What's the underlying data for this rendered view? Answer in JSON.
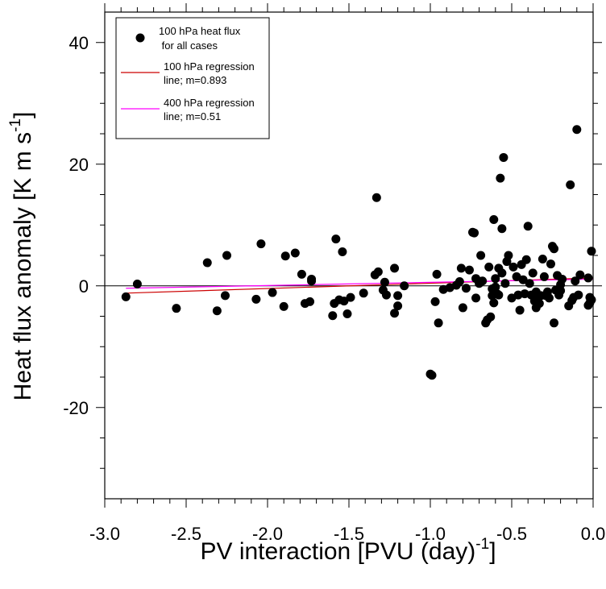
{
  "chart_data": {
    "type": "scatter",
    "xlabel": "PV interaction [PVU (day)",
    "xlabel_sup": "-1",
    "xlabel_end": "]",
    "ylabel": "Heat flux anomaly [K m s",
    "ylabel_sup": "-1",
    "ylabel_end": "]",
    "xlim": [
      -3.0,
      0.0
    ],
    "ylim": [
      -35,
      45
    ],
    "x_major_ticks": [
      -3.0,
      -2.5,
      -2.0,
      -1.5,
      -1.0,
      -0.5,
      0.0
    ],
    "x_tick_labels": [
      "-3.0",
      "-2.5",
      "-2.0",
      "-1.5",
      "-1.0",
      "-0.5",
      "0.0"
    ],
    "x_minor_ticks": [
      -2.9,
      -2.8,
      -2.7,
      -2.6,
      -2.4,
      -2.3,
      -2.2,
      -2.1,
      -1.9,
      -1.8,
      -1.7,
      -1.6,
      -1.4,
      -1.3,
      -1.2,
      -1.1,
      -0.9,
      -0.8,
      -0.7,
      -0.6,
      -0.4,
      -0.3,
      -0.2,
      -0.1
    ],
    "y_major_ticks": [
      -20,
      0,
      20,
      40
    ],
    "y_tick_labels": [
      "-20",
      "0",
      "20",
      "40"
    ],
    "y_minor_ticks": [
      -30,
      -25,
      -15,
      -10,
      -5,
      5,
      10,
      15,
      25,
      30,
      35
    ],
    "zero_line": true,
    "grid": false,
    "legend_position": "top-left",
    "legend": [
      {
        "kind": "marker",
        "line1": "100 hPa heat flux",
        "line2": " for all cases",
        "color": "#000000"
      },
      {
        "kind": "line",
        "line1": "100 hPa regression",
        "line2": "line; m=0.893",
        "color": "#cc0000"
      },
      {
        "kind": "line",
        "line1": "400 hPa regression",
        "line2": "line; m=0.51",
        "color": "#ff00ff"
      }
    ],
    "lines": [
      {
        "color": "#cc0000",
        "x": [
          -2.87,
          0.0
        ],
        "y": [
          -1.2,
          1.3
        ]
      },
      {
        "color": "#ff00ff",
        "x": [
          -2.87,
          0.0
        ],
        "y": [
          -0.4,
          1.1
        ]
      }
    ],
    "points": [
      {
        "x": -2.87,
        "y": -1.8
      },
      {
        "x": -2.8,
        "y": 0.3
      },
      {
        "x": -2.56,
        "y": -3.7
      },
      {
        "x": -2.37,
        "y": 3.8
      },
      {
        "x": -2.31,
        "y": -4.1
      },
      {
        "x": -2.26,
        "y": -1.6
      },
      {
        "x": -2.25,
        "y": 5.0
      },
      {
        "x": -2.07,
        "y": -2.2
      },
      {
        "x": -2.04,
        "y": 6.9
      },
      {
        "x": -1.97,
        "y": -1.1
      },
      {
        "x": -1.9,
        "y": -3.4
      },
      {
        "x": -1.89,
        "y": 4.9
      },
      {
        "x": -1.83,
        "y": 5.4
      },
      {
        "x": -1.79,
        "y": 1.9
      },
      {
        "x": -1.77,
        "y": -2.9
      },
      {
        "x": -1.74,
        "y": -2.6
      },
      {
        "x": -1.73,
        "y": 0.8
      },
      {
        "x": -1.73,
        "y": 1.1
      },
      {
        "x": -1.6,
        "y": -4.9
      },
      {
        "x": -1.59,
        "y": -2.9
      },
      {
        "x": -1.58,
        "y": 7.7
      },
      {
        "x": -1.56,
        "y": -2.3
      },
      {
        "x": -1.54,
        "y": 5.6
      },
      {
        "x": -1.53,
        "y": -2.5
      },
      {
        "x": -1.51,
        "y": -4.6
      },
      {
        "x": -1.49,
        "y": -1.9
      },
      {
        "x": -1.41,
        "y": -1.2
      },
      {
        "x": -1.34,
        "y": 1.8
      },
      {
        "x": -1.33,
        "y": 14.5
      },
      {
        "x": -1.32,
        "y": 2.3
      },
      {
        "x": -1.29,
        "y": -0.7
      },
      {
        "x": -1.28,
        "y": 0.6
      },
      {
        "x": -1.27,
        "y": -1.5
      },
      {
        "x": -1.22,
        "y": 2.9
      },
      {
        "x": -1.22,
        "y": -4.5
      },
      {
        "x": -1.2,
        "y": -3.3
      },
      {
        "x": -1.2,
        "y": -1.6
      },
      {
        "x": -1.16,
        "y": 0.0
      },
      {
        "x": -1.0,
        "y": -14.5
      },
      {
        "x": -0.99,
        "y": -14.7
      },
      {
        "x": -0.97,
        "y": -2.6
      },
      {
        "x": -0.96,
        "y": 1.9
      },
      {
        "x": -0.95,
        "y": -6.1
      },
      {
        "x": -0.92,
        "y": -0.6
      },
      {
        "x": -0.88,
        "y": -0.3
      },
      {
        "x": -0.84,
        "y": 0.1
      },
      {
        "x": -0.82,
        "y": 0.7
      },
      {
        "x": -0.81,
        "y": 2.9
      },
      {
        "x": -0.8,
        "y": -3.6
      },
      {
        "x": -0.78,
        "y": -0.4
      },
      {
        "x": -0.76,
        "y": 2.6
      },
      {
        "x": -0.74,
        "y": 8.8
      },
      {
        "x": -0.73,
        "y": 8.7
      },
      {
        "x": -0.72,
        "y": 1.2
      },
      {
        "x": -0.72,
        "y": -2.0
      },
      {
        "x": -0.7,
        "y": 0.4
      },
      {
        "x": -0.69,
        "y": 5.0
      },
      {
        "x": -0.68,
        "y": 0.8
      },
      {
        "x": -0.66,
        "y": -6.1
      },
      {
        "x": -0.65,
        "y": -5.6
      },
      {
        "x": -0.64,
        "y": 3.1
      },
      {
        "x": -0.63,
        "y": -5.1
      },
      {
        "x": -0.62,
        "y": -1.6
      },
      {
        "x": -0.62,
        "y": -0.5
      },
      {
        "x": -0.61,
        "y": 10.9
      },
      {
        "x": -0.61,
        "y": -2.8
      },
      {
        "x": -0.6,
        "y": 1.2
      },
      {
        "x": -0.6,
        "y": -0.2
      },
      {
        "x": -0.59,
        "y": -1.3
      },
      {
        "x": -0.58,
        "y": -1.5
      },
      {
        "x": -0.58,
        "y": 2.9
      },
      {
        "x": -0.57,
        "y": 17.7
      },
      {
        "x": -0.56,
        "y": 2.1
      },
      {
        "x": -0.56,
        "y": 9.4
      },
      {
        "x": -0.55,
        "y": 21.1
      },
      {
        "x": -0.54,
        "y": 0.4
      },
      {
        "x": -0.53,
        "y": 4.0
      },
      {
        "x": -0.52,
        "y": 5.0
      },
      {
        "x": -0.5,
        "y": -2.0
      },
      {
        "x": -0.49,
        "y": 3.1
      },
      {
        "x": -0.47,
        "y": 1.5
      },
      {
        "x": -0.46,
        "y": -1.5
      },
      {
        "x": -0.45,
        "y": -4.0
      },
      {
        "x": -0.44,
        "y": 3.5
      },
      {
        "x": -0.43,
        "y": 1.0
      },
      {
        "x": -0.42,
        "y": -1.3
      },
      {
        "x": -0.41,
        "y": 4.3
      },
      {
        "x": -0.4,
        "y": 9.8
      },
      {
        "x": -0.39,
        "y": 0.4
      },
      {
        "x": -0.38,
        "y": -1.5
      },
      {
        "x": -0.37,
        "y": 2.1
      },
      {
        "x": -0.36,
        "y": -2.5
      },
      {
        "x": -0.35,
        "y": -1.0
      },
      {
        "x": -0.35,
        "y": -3.6
      },
      {
        "x": -0.34,
        "y": -1.8
      },
      {
        "x": -0.33,
        "y": -2.9
      },
      {
        "x": -0.32,
        "y": -1.6
      },
      {
        "x": -0.31,
        "y": 4.4
      },
      {
        "x": -0.3,
        "y": 1.5
      },
      {
        "x": -0.29,
        "y": -1.6
      },
      {
        "x": -0.28,
        "y": -1.0
      },
      {
        "x": -0.27,
        "y": -2.0
      },
      {
        "x": -0.26,
        "y": 3.6
      },
      {
        "x": -0.25,
        "y": 6.5
      },
      {
        "x": -0.24,
        "y": -6.1
      },
      {
        "x": -0.24,
        "y": 6.1
      },
      {
        "x": -0.23,
        "y": -0.7
      },
      {
        "x": -0.22,
        "y": 1.7
      },
      {
        "x": -0.21,
        "y": -1.5
      },
      {
        "x": -0.2,
        "y": 0.2
      },
      {
        "x": -0.2,
        "y": -0.8
      },
      {
        "x": -0.19,
        "y": 1.1
      },
      {
        "x": -0.15,
        "y": -3.3
      },
      {
        "x": -0.14,
        "y": 16.6
      },
      {
        "x": -0.13,
        "y": -2.4
      },
      {
        "x": -0.12,
        "y": -1.9
      },
      {
        "x": -0.11,
        "y": 0.8
      },
      {
        "x": -0.1,
        "y": 25.7
      },
      {
        "x": -0.09,
        "y": -1.5
      },
      {
        "x": -0.08,
        "y": 1.8
      },
      {
        "x": -0.03,
        "y": 1.3
      },
      {
        "x": -0.03,
        "y": -3.2
      },
      {
        "x": -0.02,
        "y": -2.8
      },
      {
        "x": -0.02,
        "y": -1.9
      },
      {
        "x": -0.01,
        "y": 5.7
      },
      {
        "x": -0.01,
        "y": -2.3
      }
    ]
  }
}
